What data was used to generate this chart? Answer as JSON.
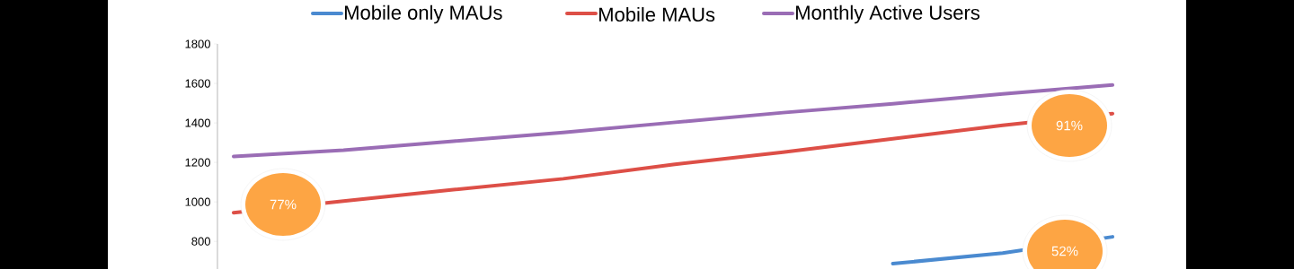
{
  "chart_data": {
    "type": "line",
    "categories": [
      null,
      null,
      null,
      null,
      null,
      null,
      null,
      null,
      null
    ],
    "series": [
      {
        "name": "Mobile only MAUs",
        "color": "#4a8ad0",
        "values": [
          null,
          null,
          null,
          null,
          null,
          null,
          687,
          741,
          823
        ]
      },
      {
        "name": "Mobile MAUs",
        "color": "#dd4f47",
        "values": [
          945,
          1004,
          1062,
          1117,
          1189,
          1252,
          1320,
          1388,
          1447
        ]
      },
      {
        "name": "Monthly Active Users",
        "color": "#9a6db5",
        "values": [
          1230,
          1262,
          1307,
          1352,
          1402,
          1452,
          1497,
          1547,
          1592
        ]
      }
    ],
    "ylim": [
      660,
      1800
    ],
    "yticks": [
      800,
      1000,
      1200,
      1400,
      1600,
      1800
    ],
    "legend": "top",
    "annotations": [
      "77%",
      "91%",
      "52%"
    ]
  }
}
